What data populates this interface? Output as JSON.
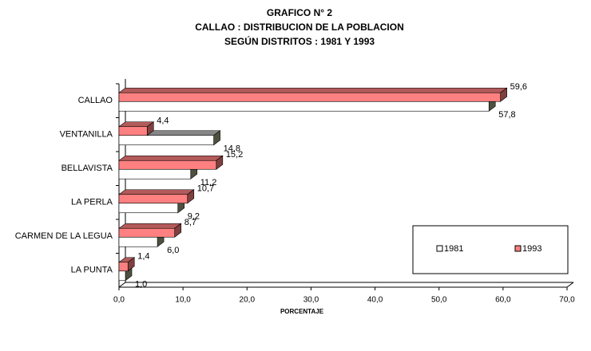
{
  "chart_data": {
    "type": "bar",
    "orientation": "horizontal",
    "title": [
      "GRAFICO N° 2",
      "CALLAO : DISTRIBUCION DE LA POBLACION",
      "SEGÚN DISTRITOS : 1981 Y 1993"
    ],
    "x_label": "PORCENTAJE",
    "categories": [
      "CALLAO",
      "VENTANILLA",
      "BELLAVISTA",
      "LA PERLA",
      "CARMEN DE LA LEGUA",
      "LA PUNTA"
    ],
    "series": [
      {
        "name": "1981",
        "color": "#ffffff",
        "values": [
          57.8,
          14.8,
          11.2,
          9.2,
          6.0,
          1.0
        ],
        "value_labels": [
          "57,8",
          "14,8",
          "11,2",
          "9,2",
          "6,0",
          "1,0"
        ]
      },
      {
        "name": "1993",
        "color": "#ff8080",
        "values": [
          59.6,
          4.4,
          15.2,
          10.7,
          8.7,
          1.4
        ],
        "value_labels": [
          "59,6",
          "4,4",
          "15,2",
          "10,7",
          "8,7",
          "1,4"
        ]
      }
    ],
    "xlim": [
      0,
      70
    ],
    "xticks": [
      {
        "value": 0,
        "label": "0,0"
      },
      {
        "value": 10,
        "label": "10,0"
      },
      {
        "value": 20,
        "label": "20,0"
      },
      {
        "value": 30,
        "label": "30,0"
      },
      {
        "value": 40,
        "label": "40,0"
      },
      {
        "value": 50,
        "label": "50,0"
      },
      {
        "value": 60,
        "label": "60,0"
      },
      {
        "value": 70,
        "label": "70,0"
      }
    ],
    "legend": "bottom-right"
  }
}
